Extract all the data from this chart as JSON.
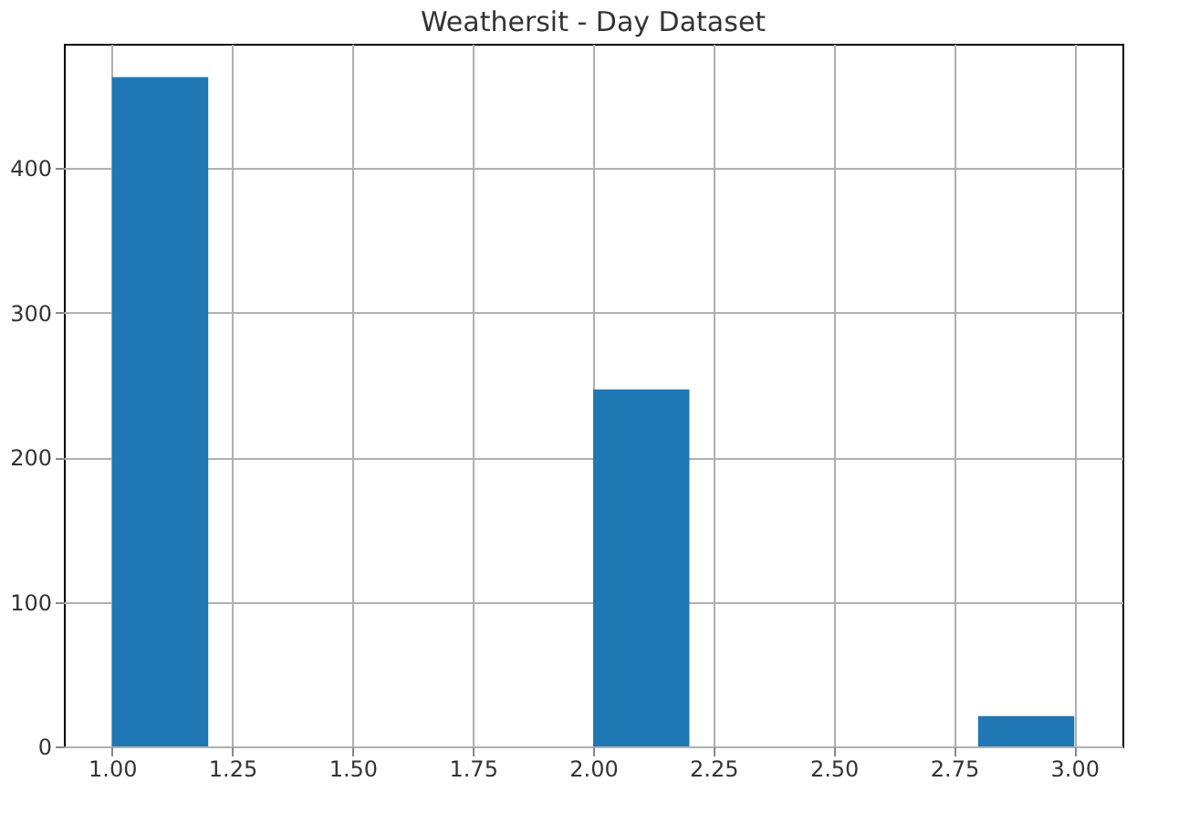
{
  "chart_data": {
    "type": "histogram",
    "title": "Weathersit - Day Dataset",
    "bins": [
      1.0,
      1.2,
      1.4,
      1.6,
      1.8,
      2.0,
      2.2,
      2.4,
      2.6,
      2.8,
      3.0
    ],
    "values": [
      463,
      0,
      0,
      0,
      0,
      247,
      0,
      0,
      0,
      21
    ],
    "color": "#1f77b4",
    "xlim": [
      0.9,
      3.1
    ],
    "xticks": [
      {
        "value": 1.0,
        "label": "1.00"
      },
      {
        "value": 1.25,
        "label": "1.25"
      },
      {
        "value": 1.5,
        "label": "1.50"
      },
      {
        "value": 1.75,
        "label": "1.75"
      },
      {
        "value": 2.0,
        "label": "2.00"
      },
      {
        "value": 2.25,
        "label": "2.25"
      },
      {
        "value": 2.5,
        "label": "2.50"
      },
      {
        "value": 2.75,
        "label": "2.75"
      },
      {
        "value": 3.0,
        "label": "3.00"
      }
    ],
    "ylim": [
      0,
      486
    ],
    "yticks": [
      0,
      100,
      200,
      300,
      400
    ],
    "grid": true
  }
}
